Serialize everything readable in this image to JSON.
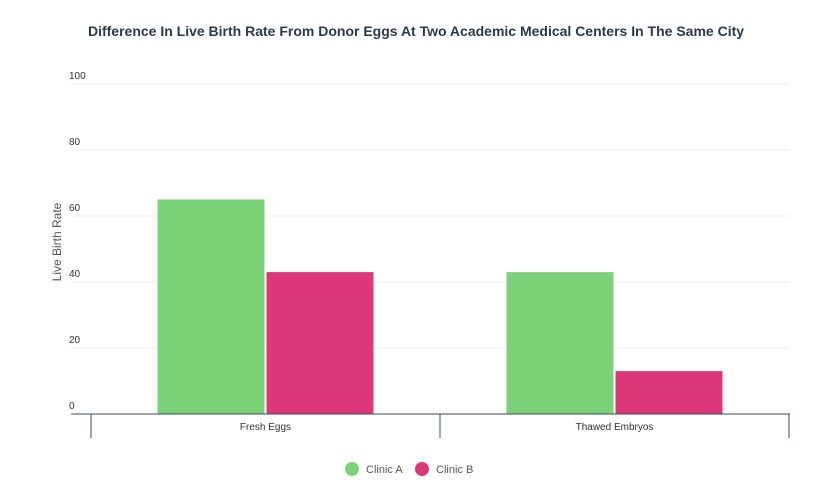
{
  "chart_data": {
    "type": "bar",
    "title": "Difference In Live Birth Rate From Donor Eggs At Two Academic Medical Centers In The Same City",
    "xlabel": "",
    "ylabel": "Live Birth Rate",
    "ylim": [
      0,
      100
    ],
    "yticks": [
      0,
      20,
      40,
      60,
      80,
      100
    ],
    "categories": [
      "Fresh Eggs",
      "Thawed Embryos"
    ],
    "series": [
      {
        "name": "Clinic A",
        "color": "#7dd179",
        "values": [
          65,
          43
        ]
      },
      {
        "name": "Clinic B",
        "color": "#dc3779",
        "values": [
          43,
          13
        ]
      }
    ],
    "grid": true,
    "legend_position": "bottom-center"
  }
}
